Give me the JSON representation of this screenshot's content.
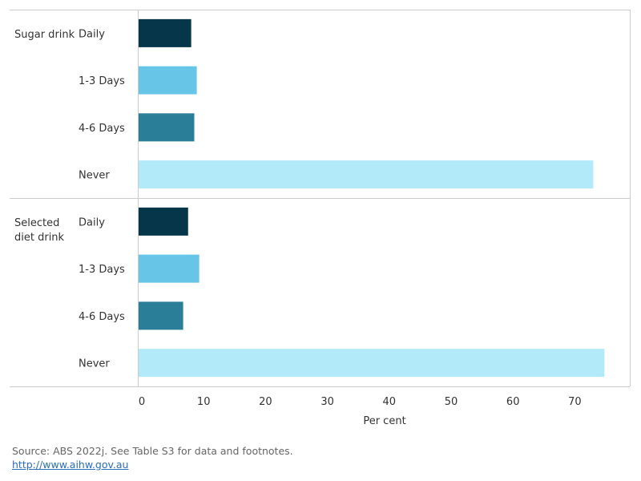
{
  "chart_data": {
    "type": "bar",
    "orientation": "horizontal",
    "xlabel": "Per cent",
    "xlim": [
      0,
      76
    ],
    "xticks": [
      0,
      10,
      20,
      30,
      40,
      50,
      60,
      70
    ],
    "groups": [
      {
        "name": "Sugar drink",
        "categories": [
          "Daily",
          "1-3 Days",
          "4-6 Days",
          "Never"
        ],
        "values": [
          8.5,
          9.4,
          9.0,
          73.5
        ]
      },
      {
        "name": "Selected diet drink",
        "categories": [
          "Daily",
          "1-3 Days",
          "4-6 Days",
          "Never"
        ],
        "values": [
          8.0,
          9.8,
          7.2,
          75.3
        ]
      }
    ],
    "category_colors": {
      "Daily": "#05364a",
      "1-3 Days": "#67c6e8",
      "4-6 Days": "#2a7e97",
      "Never": "#b3eafa"
    },
    "grid": false
  },
  "footer": {
    "source": "Source: ABS 2022j. See Table S3 for data and footnotes.",
    "link": "http://www.aihw.gov.au"
  }
}
